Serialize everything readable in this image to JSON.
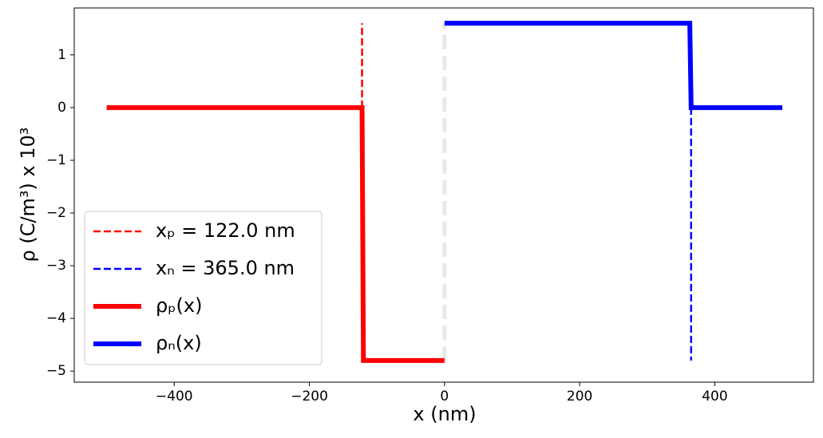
{
  "chart_data": {
    "type": "line",
    "xlabel": "x (nm)",
    "ylabel": "ρ (C/m³) x 10³",
    "xlim": [
      -548,
      546
    ],
    "ylim": [
      -5.21,
      1.89
    ],
    "xticks": [
      {
        "value": -400,
        "label": "−400"
      },
      {
        "value": -200,
        "label": "−200"
      },
      0,
      200,
      400
    ],
    "yticks": [
      {
        "value": -5,
        "label": "−5"
      },
      {
        "value": -4,
        "label": "−4"
      },
      {
        "value": -3,
        "label": "−3"
      },
      {
        "value": -2,
        "label": "−2"
      },
      {
        "value": -1,
        "label": "−1"
      },
      0,
      1
    ],
    "center_line": {
      "x": [
        0,
        0
      ],
      "values": [
        -4.8,
        1.6
      ],
      "color": "#e8e8e8"
    },
    "legend": "lower left",
    "series": [
      {
        "name": "xₚ = 122.0 nm",
        "color": "#ff0000",
        "style": "dashed",
        "x": [
          -122,
          -122
        ],
        "values": [
          0,
          1.6
        ]
      },
      {
        "name": "xₙ = 365.0 nm",
        "color": "#0000ff",
        "style": "dashed",
        "x": [
          365,
          365
        ],
        "values": [
          0,
          -4.8
        ]
      },
      {
        "name": "ρₚ(x)",
        "color": "#ff0000",
        "style": "solid",
        "x": [
          -500,
          -122,
          -120,
          0
        ],
        "values": [
          0,
          0,
          -4.8,
          -4.8
        ]
      },
      {
        "name": "ρₙ(x)",
        "color": "#0000ff",
        "style": "solid",
        "x": [
          0,
          363,
          365,
          500
        ],
        "values": [
          1.6,
          1.6,
          0,
          0
        ]
      }
    ]
  }
}
